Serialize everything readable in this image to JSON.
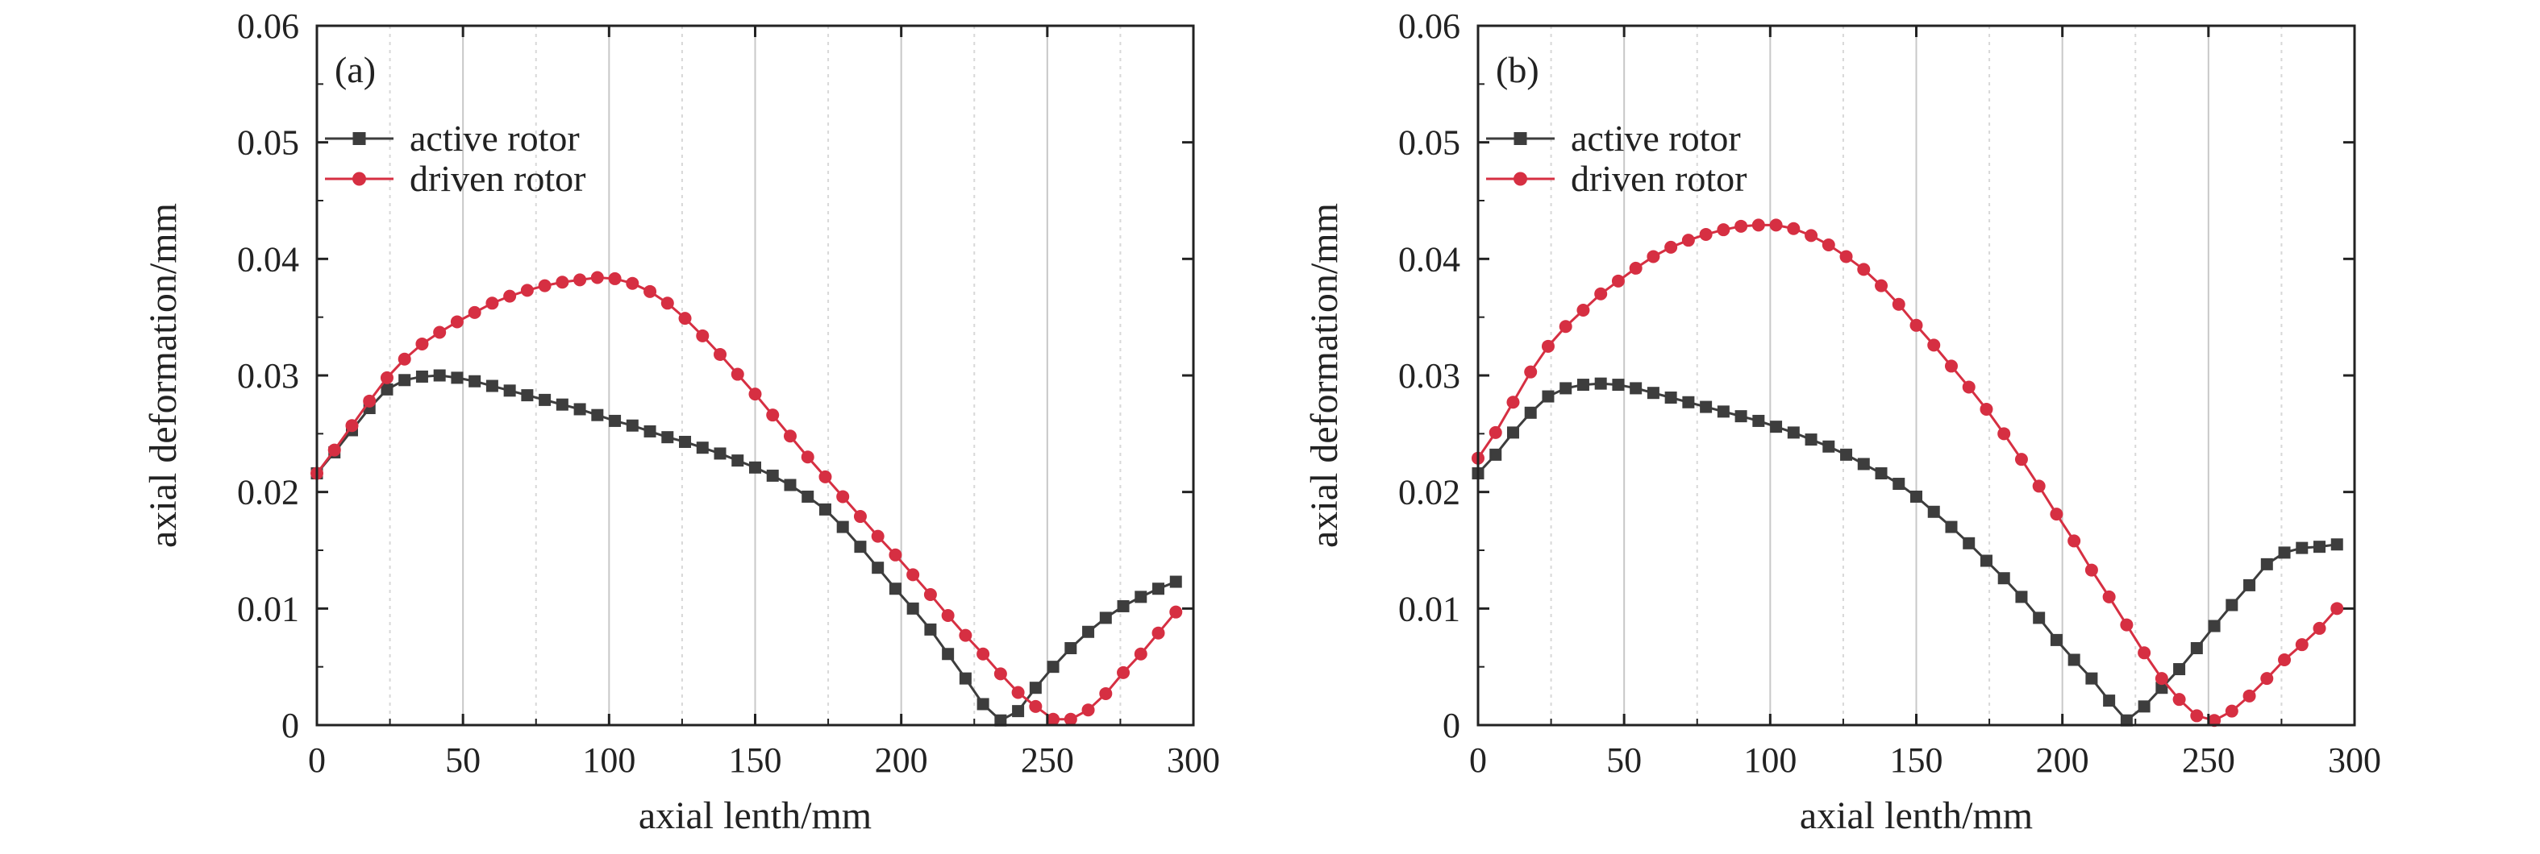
{
  "figure": {
    "colors": {
      "active": "#3d3d3d",
      "driven": "#d62f42",
      "gridMajor": "#c8c8c8",
      "gridMinor": "#d8d8d8",
      "axis": "#222222"
    }
  },
  "chart_data": [
    {
      "type": "line",
      "panel_label": "(a)",
      "xlabel": "axial lenth/mm",
      "ylabel": "axial deformation/mm",
      "xlim": [
        0,
        300
      ],
      "ylim": [
        0,
        0.06
      ],
      "xticks": [
        "0",
        "50",
        "100",
        "150",
        "200",
        "250",
        "300"
      ],
      "yticks": [
        "0",
        "0.01",
        "0.02",
        "0.03",
        "0.04",
        "0.05",
        "0.06"
      ],
      "grid": "vertical",
      "legend_position": "top-left",
      "series": [
        {
          "name": "active rotor",
          "marker": "square",
          "color": "#3d3d3d",
          "x": [
            0,
            6,
            12,
            18,
            24,
            30,
            36,
            42,
            48,
            54,
            60,
            66,
            72,
            78,
            84,
            90,
            96,
            102,
            108,
            114,
            120,
            126,
            132,
            138,
            144,
            150,
            156,
            162,
            168,
            174,
            180,
            186,
            192,
            198,
            204,
            210,
            216,
            222,
            228,
            234,
            240,
            246,
            252,
            258,
            264,
            270,
            276,
            282,
            288,
            294
          ],
          "y": [
            0.0216,
            0.0234,
            0.0253,
            0.0272,
            0.0288,
            0.0296,
            0.0299,
            0.03,
            0.0298,
            0.0295,
            0.0291,
            0.0287,
            0.0283,
            0.0279,
            0.0275,
            0.0271,
            0.0266,
            0.0261,
            0.0257,
            0.0252,
            0.0247,
            0.0243,
            0.0238,
            0.0233,
            0.0227,
            0.0221,
            0.0214,
            0.0206,
            0.0196,
            0.0185,
            0.017,
            0.0153,
            0.0135,
            0.0117,
            0.01,
            0.0082,
            0.0061,
            0.004,
            0.0018,
            0.0004,
            0.0012,
            0.0032,
            0.005,
            0.0066,
            0.008,
            0.0092,
            0.0102,
            0.011,
            0.0117,
            0.0123
          ]
        },
        {
          "name": "driven rotor",
          "marker": "circle",
          "color": "#d62f42",
          "x": [
            0,
            6,
            12,
            18,
            24,
            30,
            36,
            42,
            48,
            54,
            60,
            66,
            72,
            78,
            84,
            90,
            96,
            102,
            108,
            114,
            120,
            126,
            132,
            138,
            144,
            150,
            156,
            162,
            168,
            174,
            180,
            186,
            192,
            198,
            204,
            210,
            216,
            222,
            228,
            234,
            240,
            246,
            252,
            258,
            264,
            270,
            276,
            282,
            288,
            294
          ],
          "y": [
            0.0216,
            0.0236,
            0.0257,
            0.0278,
            0.0298,
            0.0314,
            0.0327,
            0.0337,
            0.0346,
            0.0354,
            0.0362,
            0.0368,
            0.0373,
            0.0377,
            0.038,
            0.0382,
            0.0384,
            0.0383,
            0.0379,
            0.0372,
            0.0362,
            0.0349,
            0.0334,
            0.0318,
            0.0301,
            0.0284,
            0.0266,
            0.0248,
            0.023,
            0.0213,
            0.0196,
            0.0179,
            0.0162,
            0.0146,
            0.0129,
            0.0112,
            0.0094,
            0.0077,
            0.0061,
            0.0044,
            0.0028,
            0.0016,
            0.0005,
            0.0005,
            0.0013,
            0.0027,
            0.0045,
            0.0061,
            0.0079,
            0.0097
          ]
        }
      ]
    },
    {
      "type": "line",
      "panel_label": "(b)",
      "xlabel": "axial lenth/mm",
      "ylabel": "axial deformation/mm",
      "xlim": [
        0,
        300
      ],
      "ylim": [
        0,
        0.06
      ],
      "xticks": [
        "0",
        "50",
        "100",
        "150",
        "200",
        "250",
        "300"
      ],
      "yticks": [
        "0",
        "0.01",
        "0.02",
        "0.03",
        "0.04",
        "0.05",
        "0.06"
      ],
      "grid": "vertical",
      "legend_position": "top-left",
      "series": [
        {
          "name": "active rotor",
          "marker": "square",
          "color": "#3d3d3d",
          "x": [
            0,
            6,
            12,
            18,
            24,
            30,
            36,
            42,
            48,
            54,
            60,
            66,
            72,
            78,
            84,
            90,
            96,
            102,
            108,
            114,
            120,
            126,
            132,
            138,
            144,
            150,
            156,
            162,
            168,
            174,
            180,
            186,
            192,
            198,
            204,
            210,
            216,
            222,
            228,
            234,
            240,
            246,
            252,
            258,
            264,
            270,
            276,
            282,
            288,
            294
          ],
          "y": [
            0.0216,
            0.0232,
            0.0251,
            0.0268,
            0.0282,
            0.0289,
            0.0292,
            0.0293,
            0.0292,
            0.0289,
            0.0285,
            0.0281,
            0.0277,
            0.0273,
            0.0269,
            0.0265,
            0.0261,
            0.0256,
            0.0251,
            0.0245,
            0.0239,
            0.0232,
            0.0224,
            0.0216,
            0.0207,
            0.0196,
            0.0183,
            0.017,
            0.0156,
            0.0141,
            0.0126,
            0.011,
            0.0092,
            0.0073,
            0.0056,
            0.004,
            0.0021,
            0.0004,
            0.0016,
            0.0032,
            0.0048,
            0.0066,
            0.0085,
            0.0103,
            0.012,
            0.0138,
            0.0148,
            0.0152,
            0.0153,
            0.0155
          ]
        },
        {
          "name": "driven rotor",
          "marker": "circle",
          "color": "#d62f42",
          "x": [
            0,
            6,
            12,
            18,
            24,
            30,
            36,
            42,
            48,
            54,
            60,
            66,
            72,
            78,
            84,
            90,
            96,
            102,
            108,
            114,
            120,
            126,
            132,
            138,
            144,
            150,
            156,
            162,
            168,
            174,
            180,
            186,
            192,
            198,
            204,
            210,
            216,
            222,
            228,
            234,
            240,
            246,
            252,
            258,
            264,
            270,
            276,
            282,
            288,
            294
          ],
          "y": [
            0.0229,
            0.0251,
            0.0277,
            0.0303,
            0.0325,
            0.0342,
            0.0356,
            0.037,
            0.0381,
            0.0392,
            0.0402,
            0.041,
            0.0416,
            0.0421,
            0.0425,
            0.0428,
            0.0429,
            0.0429,
            0.0426,
            0.042,
            0.0412,
            0.0402,
            0.0391,
            0.0377,
            0.0361,
            0.0343,
            0.0326,
            0.0308,
            0.029,
            0.0271,
            0.025,
            0.0228,
            0.0205,
            0.0181,
            0.0158,
            0.0133,
            0.011,
            0.0086,
            0.0062,
            0.004,
            0.0022,
            0.0008,
            0.0004,
            0.0012,
            0.0025,
            0.004,
            0.0056,
            0.0069,
            0.0083,
            0.01
          ]
        }
      ]
    }
  ]
}
